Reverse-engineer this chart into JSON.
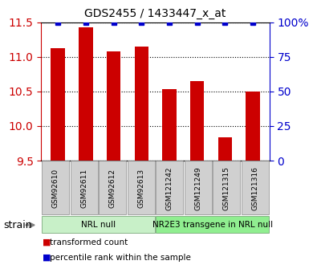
{
  "title": "GDS2455 / 1433447_x_at",
  "samples": [
    "GSM92610",
    "GSM92611",
    "GSM92612",
    "GSM92613",
    "GSM121242",
    "GSM121249",
    "GSM121315",
    "GSM121316"
  ],
  "transformed_counts": [
    11.13,
    11.43,
    11.08,
    11.15,
    10.53,
    10.65,
    9.84,
    10.5
  ],
  "percentile_values": [
    100,
    100,
    100,
    100,
    100,
    100,
    100,
    100
  ],
  "ylim_left": [
    9.5,
    11.5
  ],
  "ylim_right": [
    0,
    100
  ],
  "yticks_left": [
    9.5,
    10.0,
    10.5,
    11.0,
    11.5
  ],
  "yticks_right": [
    0,
    25,
    50,
    75,
    100
  ],
  "groups": [
    {
      "label": "NRL null",
      "start": 0,
      "end": 3,
      "color": "#c8f0c8"
    },
    {
      "label": "NR2E3 transgene in NRL null",
      "start": 4,
      "end": 7,
      "color": "#90ee90"
    }
  ],
  "strain_label": "strain",
  "bar_color": "#cc0000",
  "dot_color": "#0000cc",
  "tick_bg_color": "#d0d0d0",
  "left_axis_color": "#cc0000",
  "right_axis_color": "#0000cc",
  "legend_bar_label": "transformed count",
  "legend_dot_label": "percentile rank within the sample"
}
